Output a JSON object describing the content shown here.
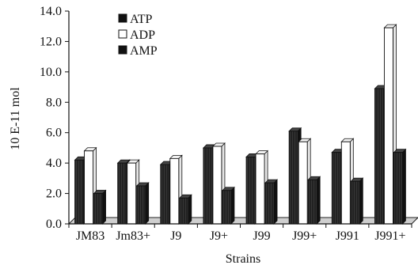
{
  "chart_data": {
    "type": "bar",
    "title": "",
    "xlabel": "Strains",
    "ylabel": "10 E-11 mol",
    "ylim": [
      0,
      14
    ],
    "y_ticks": [
      "0.0",
      "2.0",
      "4.0",
      "6.0",
      "8.0",
      "10.0",
      "12.0",
      "14.0"
    ],
    "categories": [
      "JM83",
      "Jm83+",
      "J9",
      "J9+",
      "J99",
      "J99+",
      "J991",
      "J991+"
    ],
    "legend_position": "top-left",
    "grid": false,
    "series": [
      {
        "name": "ATP",
        "color": "#1a1a1a",
        "values": [
          4.2,
          4.0,
          3.9,
          5.0,
          4.4,
          6.1,
          4.7,
          8.9
        ]
      },
      {
        "name": "ADP",
        "color": "#ffffff",
        "values": [
          4.8,
          4.0,
          4.3,
          5.1,
          4.6,
          5.4,
          5.4,
          12.9
        ]
      },
      {
        "name": "AMP",
        "color": "#1a1a1a",
        "values": [
          2.0,
          2.5,
          1.7,
          2.2,
          2.7,
          2.9,
          2.8,
          4.7
        ]
      }
    ]
  }
}
